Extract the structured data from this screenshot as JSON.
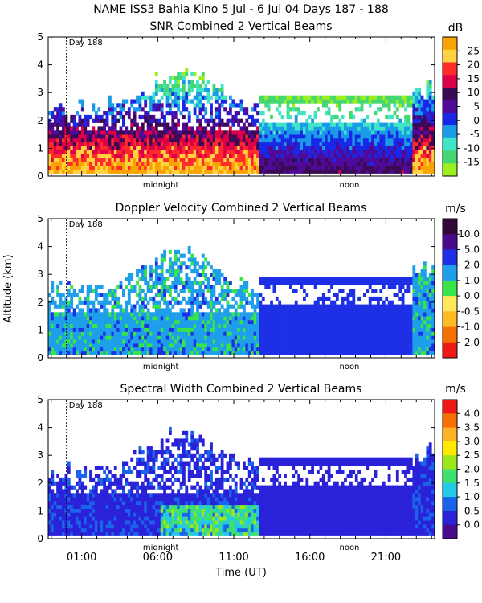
{
  "header": {
    "main_title": "NAME ISS3 Bahia Kino    5 Jul -   6 Jul 04 Days 187 - 188"
  },
  "axes_common": {
    "ylabel": "Altitude (km)",
    "xlabel": "Time (UT)",
    "time_ticks": [
      "01:00",
      "06:00",
      "11:00",
      "16:00",
      "21:00"
    ],
    "time_tick_hours": [
      1,
      6,
      11,
      16,
      21
    ],
    "xlim_hours": [
      -1.2,
      24.2
    ],
    "ylim_km": [
      0,
      5
    ],
    "y_ticks": [
      "0",
      "1",
      "2",
      "3",
      "4",
      "5"
    ],
    "day_marker_label": "Day 188",
    "midnight_label": "midnight",
    "noon_label": "noon"
  },
  "chart_data": [
    {
      "type": "heatmap",
      "title": "SNR Combined 2 Vertical Beams",
      "units": "dB",
      "colorbar_ticks": [
        "25",
        "20",
        "15",
        "10",
        "5",
        "0",
        "-5",
        "-10",
        "-15"
      ],
      "colorbar_colors": [
        "#f8a300",
        "#ffd040",
        "#ff2a2a",
        "#dd0048",
        "#3a0a55",
        "#500a9a",
        "#1828e6",
        "#1a9be8",
        "#40e5c8",
        "#46d870",
        "#9bef1c"
      ],
      "approx_signal_top_km": 3.8
    },
    {
      "type": "heatmap",
      "title": "Doppler Velocity Combined 2 Vertical Beams",
      "units": "m/s",
      "colorbar_ticks": [
        "10.0",
        "5.0",
        "2.0",
        "1.0",
        "0.0",
        "-0.5",
        "-1.0",
        "-2.0"
      ],
      "colorbar_colors": [
        "#320838",
        "#4a0a8c",
        "#1e30e6",
        "#1f9fea",
        "#37e54a",
        "#ffe85a",
        "#ffbb22",
        "#f57000",
        "#ee1818"
      ],
      "approx_signal_top_km": 3.8
    },
    {
      "type": "heatmap",
      "title": "Spectral Width Combined 2 Vertical Beams",
      "units": "m/s",
      "colorbar_ticks": [
        "4.0",
        "3.5",
        "3.0",
        "2.5",
        "2.0",
        "1.5",
        "1.0",
        "0.5",
        "0.0"
      ],
      "colorbar_colors": [
        "#ee1818",
        "#f57000",
        "#ffb322",
        "#ffea00",
        "#9be71c",
        "#3ee070",
        "#25c8e6",
        "#1a64ea",
        "#2a22d8",
        "#4a0a8c"
      ],
      "approx_signal_top_km": 3.7
    }
  ]
}
